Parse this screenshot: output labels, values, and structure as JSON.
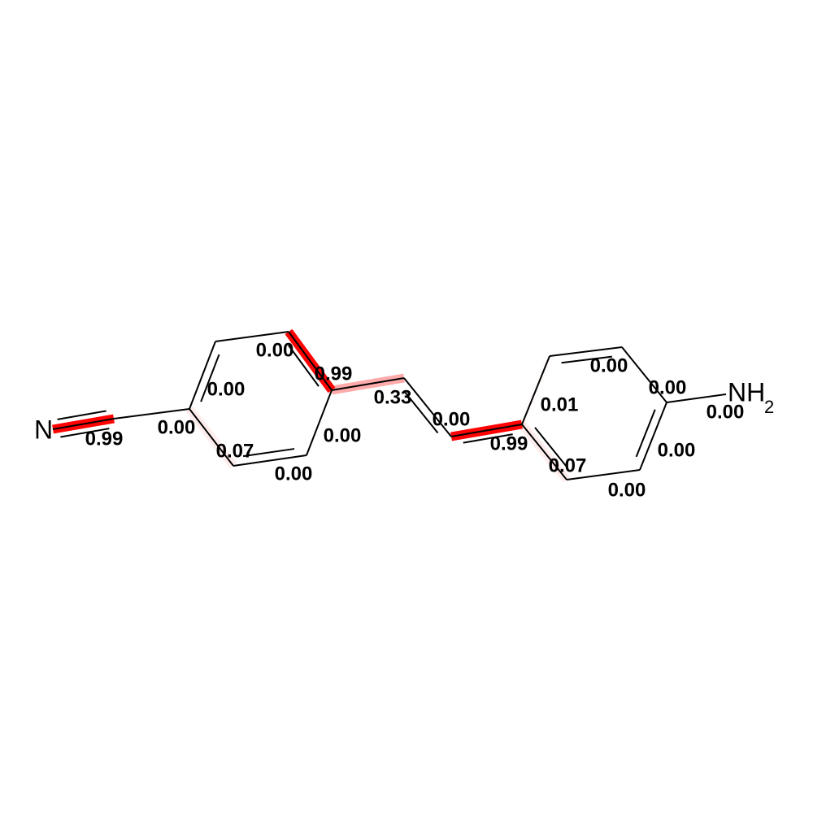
{
  "atoms": [
    {
      "label": "N"
    },
    {
      "label": "NH",
      "sub": "2"
    }
  ],
  "bonds": [
    {
      "label": "0.99"
    },
    {
      "label": "0.00"
    },
    {
      "label": "0.00"
    },
    {
      "label": "0.00"
    },
    {
      "label": "0.99"
    },
    {
      "label": "0.00"
    },
    {
      "label": "0.00"
    },
    {
      "label": "0.07"
    },
    {
      "label": "0.33"
    },
    {
      "label": "0.00"
    },
    {
      "label": "0.99"
    },
    {
      "label": "0.01"
    },
    {
      "label": "0.00"
    },
    {
      "label": "0.00"
    },
    {
      "label": "0.00"
    },
    {
      "label": "0.00"
    },
    {
      "label": "0.00"
    },
    {
      "label": "0.07"
    }
  ]
}
